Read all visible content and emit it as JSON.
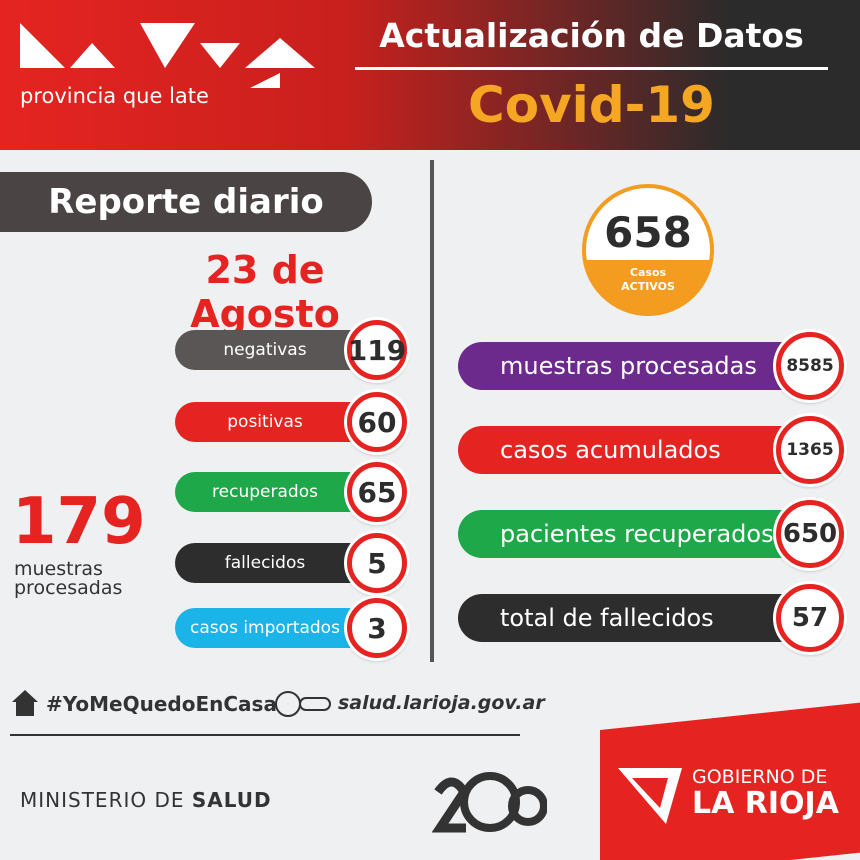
{
  "header": {
    "logo_text": "provincia que late",
    "title": "Actualización de Datos",
    "subtitle": "Covid-19"
  },
  "daily": {
    "label": "Reporte diario",
    "date": "23 de Agosto",
    "total": 179,
    "total_label": "muestras procesadas",
    "items": [
      {
        "label": "negativas",
        "value": 119,
        "color": "#5b5656"
      },
      {
        "label": "positivas",
        "value": 60,
        "color": "#e52421"
      },
      {
        "label": "recuperados",
        "value": 65,
        "color": "#1fa84a"
      },
      {
        "label": "fallecidos",
        "value": 5,
        "color": "#2d2d2d"
      },
      {
        "label": "casos importados",
        "value": 3,
        "color": "#1ab4e8"
      }
    ]
  },
  "active": {
    "value": 658,
    "label_top": "Casos",
    "label_bottom": "ACTIVOS"
  },
  "summary": [
    {
      "label": "muestras procesadas",
      "value": 8585,
      "color": "#6b2a8c"
    },
    {
      "label": "casos acumulados",
      "value": 1365,
      "color": "#e52421"
    },
    {
      "label": "pacientes recuperados",
      "value": 650,
      "color": "#1fa84a"
    },
    {
      "label": "total de fallecidos",
      "value": 57,
      "color": "#2d2d2d"
    }
  ],
  "footer": {
    "hashtag": "#YoMeQuedoEnCasa",
    "url": "salud.larioja.gov.ar",
    "ministry_prefix": "MINISTERIO DE",
    "ministry": "SALUD",
    "gov_top": "GOBIERNO DE",
    "gov_bottom": "LA RIOJA"
  }
}
